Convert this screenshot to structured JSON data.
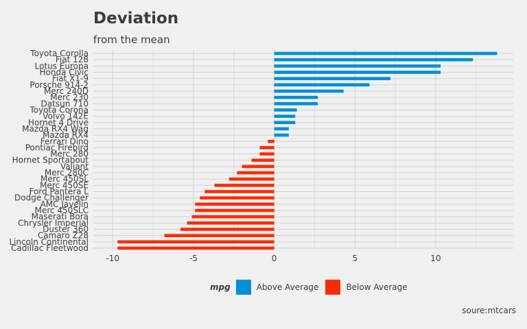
{
  "chart_data": {
    "type": "bar",
    "orientation": "horizontal",
    "title": "Deviation",
    "subtitle": "from the mean",
    "caption": "soure:mtcars",
    "legend": {
      "title": "mpg",
      "position": "bottom",
      "entries": [
        {
          "label": "Above Average",
          "color": "#008fd5"
        },
        {
          "label": "Below Average",
          "color": "#fc2b04"
        }
      ]
    },
    "xlim": [
      -11.2,
      14.8
    ],
    "x_ticks": [
      -10,
      -5,
      0,
      5,
      10
    ],
    "grid": true,
    "categories": [
      "Toyota Corolla",
      "Fiat 128",
      "Lotus Europa",
      "Honda Civic",
      "Fiat X1-9",
      "Porsche 914-2",
      "Merc 240D",
      "Merc 230",
      "Datsun 710",
      "Toyota Corona",
      "Volvo 142E",
      "Hornet 4 Drive",
      "Mazda RX4 Wag",
      "Mazda RX4",
      "Ferrari Dino",
      "Pontiac Firebird",
      "Merc 280",
      "Hornet Sportabout",
      "Valiant",
      "Merc 280C",
      "Merc 450SL",
      "Merc 450SE",
      "Ford Pantera L",
      "Dodge Challenger",
      "AMC Javelin",
      "Merc 450SLC",
      "Maserati Bora",
      "Chrysler Imperial",
      "Duster 360",
      "Camaro Z28",
      "Lincoln Continental",
      "Cadillac Fleetwood"
    ],
    "values": [
      13.8,
      12.3,
      10.3,
      10.3,
      7.2,
      5.9,
      4.3,
      2.7,
      2.7,
      1.4,
      1.3,
      1.3,
      0.9,
      0.9,
      -0.4,
      -0.9,
      -0.9,
      -1.4,
      -2.0,
      -2.3,
      -2.8,
      -3.7,
      -4.3,
      -4.6,
      -4.9,
      -4.9,
      -5.1,
      -5.4,
      -5.8,
      -6.8,
      -9.7,
      -9.7
    ]
  }
}
